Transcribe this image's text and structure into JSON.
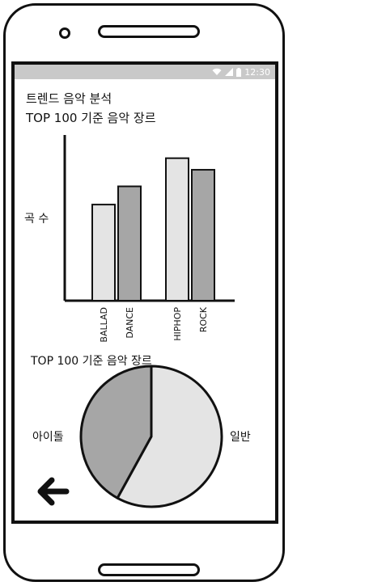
{
  "status_bar": {
    "time": "12:30",
    "icons": [
      "wifi-icon",
      "signal-icon",
      "battery-icon"
    ]
  },
  "header": {
    "title_line1": "트렌드 음악 분석",
    "title_line2": "TOP 100 기준 음악 장르"
  },
  "chart_data": [
    {
      "type": "bar",
      "ylabel": "곡 수",
      "categories": [
        "BALLAD",
        "DANCE",
        "HIPHOP",
        "ROCK"
      ],
      "values": [
        58,
        69,
        86,
        79
      ],
      "ylim": [
        0,
        100
      ],
      "colors": [
        "#e4e4e4",
        "#a6a6a6",
        "#e4e4e4",
        "#a6a6a6"
      ]
    },
    {
      "type": "pie",
      "title": "TOP 100 기준 음악 장르",
      "categories": [
        "아이돌",
        "일반"
      ],
      "values": [
        42,
        58
      ],
      "colors": [
        "#a6a6a6",
        "#e4e4e4"
      ]
    }
  ],
  "nav": {
    "back_icon": "arrow-left-icon"
  }
}
